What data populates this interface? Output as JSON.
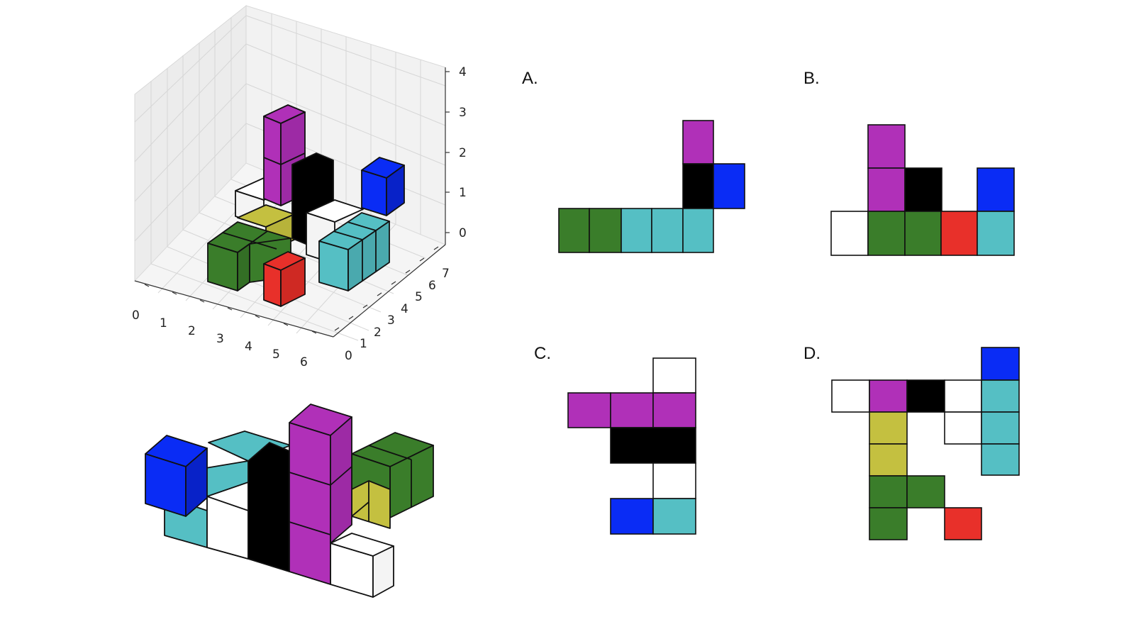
{
  "colors": {
    "magenta": "#b030b8",
    "black": "#000000",
    "blue": "#0a2cf5",
    "white": "#ffffff",
    "green": "#3a7d2a",
    "cyan": "#55bfc4",
    "red": "#e8302a",
    "yellow": "#c4c040"
  },
  "axes3d": {
    "x_ticks": [
      "0",
      "1",
      "2",
      "3",
      "4",
      "5",
      "6"
    ],
    "y_ticks": [
      "0",
      "1",
      "2",
      "3",
      "4",
      "5",
      "6",
      "7"
    ],
    "z_ticks": [
      "0",
      "1",
      "2",
      "3",
      "4"
    ]
  },
  "options": {
    "A": {
      "label": "A."
    },
    "B": {
      "label": "B."
    },
    "C": {
      "label": "C."
    },
    "D": {
      "label": "D."
    }
  }
}
